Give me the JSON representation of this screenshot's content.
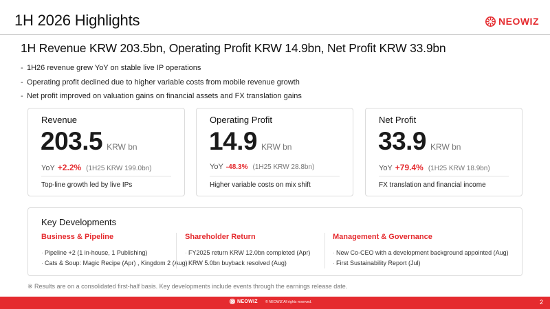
{
  "slide": {
    "title": "1H 2026 Highlights",
    "page_number": "2"
  },
  "logo": {
    "text": "NEOWIZ",
    "icon": "neowiz-logo-mark",
    "brand_color": "#e52b2f"
  },
  "headline": "1H Revenue KRW 203.5bn, Operating Profit KRW 14.9bn, Net Profit KRW 33.9bn",
  "bullets": [
    "1H26 revenue grew YoY on stable live IP operations",
    "Operating profit declined due to higher variable costs from mobile revenue growth",
    "Net profit improved on valuation gains on financial assets and FX translation gains"
  ],
  "kpis": [
    {
      "label": "Revenue",
      "value": "203.5",
      "unit": "KRW bn",
      "yoy_label": "YoY",
      "yoy_change": "+2.2%",
      "prior": "(1H25 KRW 199.0bn)",
      "note": "Top-line growth led by live IPs"
    },
    {
      "label": "Operating Profit",
      "value": "14.9",
      "unit": "KRW bn",
      "yoy_label": "YoY",
      "yoy_change": "-48.3%",
      "prior": "(1H25 KRW 28.8bn)",
      "note": "Higher variable costs on mix shift"
    },
    {
      "label": "Net Profit",
      "value": "33.9",
      "unit": "KRW bn",
      "yoy_label": "YoY",
      "yoy_change": "+79.4%",
      "prior": "(1H25 KRW 18.9bn)",
      "note": "FX translation and financial income"
    }
  ],
  "developments": {
    "title": "Key Developments",
    "columns": [
      {
        "heading": "Business & Pipeline",
        "items": [
          "Pipeline +2 (1 in-house, 1 Publishing)",
          "Cats & Soup: Magic Recipe (Apr) , Kingdom 2 (Aug)"
        ]
      },
      {
        "heading": "Shareholder Return",
        "items": [
          "FY2025 return KRW 12.0bn completed (Apr)",
          "KRW 5.0bn buyback resolved (Aug)"
        ]
      },
      {
        "heading": "Management & Governance",
        "items": [
          "New Co-CEO with a development background appointed (Aug)",
          "First Sustainability Report (Jul)"
        ]
      }
    ]
  },
  "footnote": "※ Results are on a consolidated first-half basis. Key developments include events through the earnings release date.",
  "footer": {
    "logo_text": "NEOWIZ",
    "copyright": "© NEOWIZ All rights reserved.",
    "bar_color": "#e52b2f"
  }
}
